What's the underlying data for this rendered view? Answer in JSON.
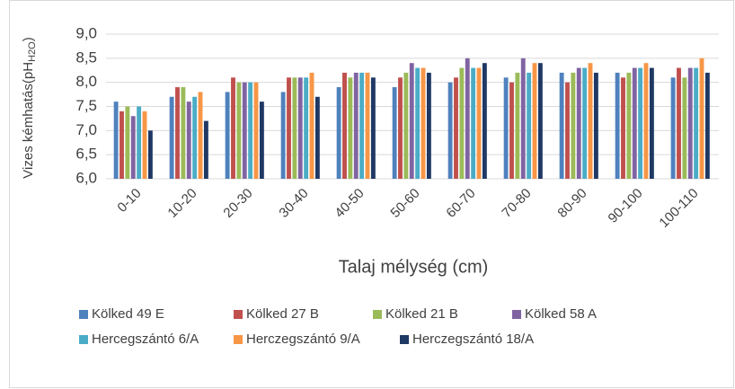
{
  "chart_data": {
    "type": "bar",
    "y_label": "Vizes kémhatás(pH",
    "y_label_sub": "H2O",
    "y_label_end": ")",
    "x_label": "Talaj mélység (cm)",
    "categories": [
      "0-10",
      "10-20",
      "20-30",
      "30-40",
      "40-50",
      "50-60",
      "60-70",
      "70-80",
      "80-90",
      "90-100",
      "100-110"
    ],
    "series": [
      {
        "name": "Kölked 49 E",
        "color": "#4f81bd",
        "values": [
          7.6,
          7.7,
          7.8,
          7.8,
          7.9,
          7.9,
          8.0,
          8.1,
          8.2,
          8.2,
          8.1
        ]
      },
      {
        "name": "Kölked 27 B",
        "color": "#c0504d",
        "values": [
          7.4,
          7.9,
          8.1,
          8.1,
          8.2,
          8.1,
          8.1,
          8.0,
          8.0,
          8.1,
          8.3
        ]
      },
      {
        "name": "Kölked 21 B",
        "color": "#9bbb59",
        "values": [
          7.5,
          7.9,
          8.0,
          8.1,
          8.1,
          8.2,
          8.3,
          8.2,
          8.2,
          8.2,
          8.1
        ]
      },
      {
        "name": "Kölked 58 A",
        "color": "#8064a2",
        "values": [
          7.3,
          7.6,
          8.0,
          8.1,
          8.2,
          8.4,
          8.5,
          8.5,
          8.3,
          8.3,
          8.3
        ]
      },
      {
        "name": "Hercegszántó 6/A",
        "color": "#4bacc6",
        "values": [
          7.5,
          7.7,
          8.0,
          8.1,
          8.2,
          8.3,
          8.3,
          8.2,
          8.3,
          8.3,
          8.3
        ]
      },
      {
        "name": "Herczegszántó 9/A",
        "color": "#f79646",
        "values": [
          7.4,
          7.8,
          8.0,
          8.2,
          8.2,
          8.3,
          8.3,
          8.4,
          8.4,
          8.4,
          8.5
        ]
      },
      {
        "name": "Herczegszántó 18/A",
        "color": "#1f3864",
        "values": [
          7.0,
          7.2,
          7.6,
          7.7,
          8.1,
          8.2,
          8.4,
          8.4,
          8.2,
          8.3,
          8.2
        ]
      }
    ],
    "ylim": [
      6.0,
      9.0
    ],
    "yticks": [
      {
        "value": 6.0,
        "label": "6,0"
      },
      {
        "value": 6.5,
        "label": "6,5"
      },
      {
        "value": 7.0,
        "label": "7,0"
      },
      {
        "value": 7.5,
        "label": "7,5"
      },
      {
        "value": 8.0,
        "label": "8,0"
      },
      {
        "value": 8.5,
        "label": "8,5"
      },
      {
        "value": 9.0,
        "label": "9,0"
      }
    ],
    "grid": true
  }
}
